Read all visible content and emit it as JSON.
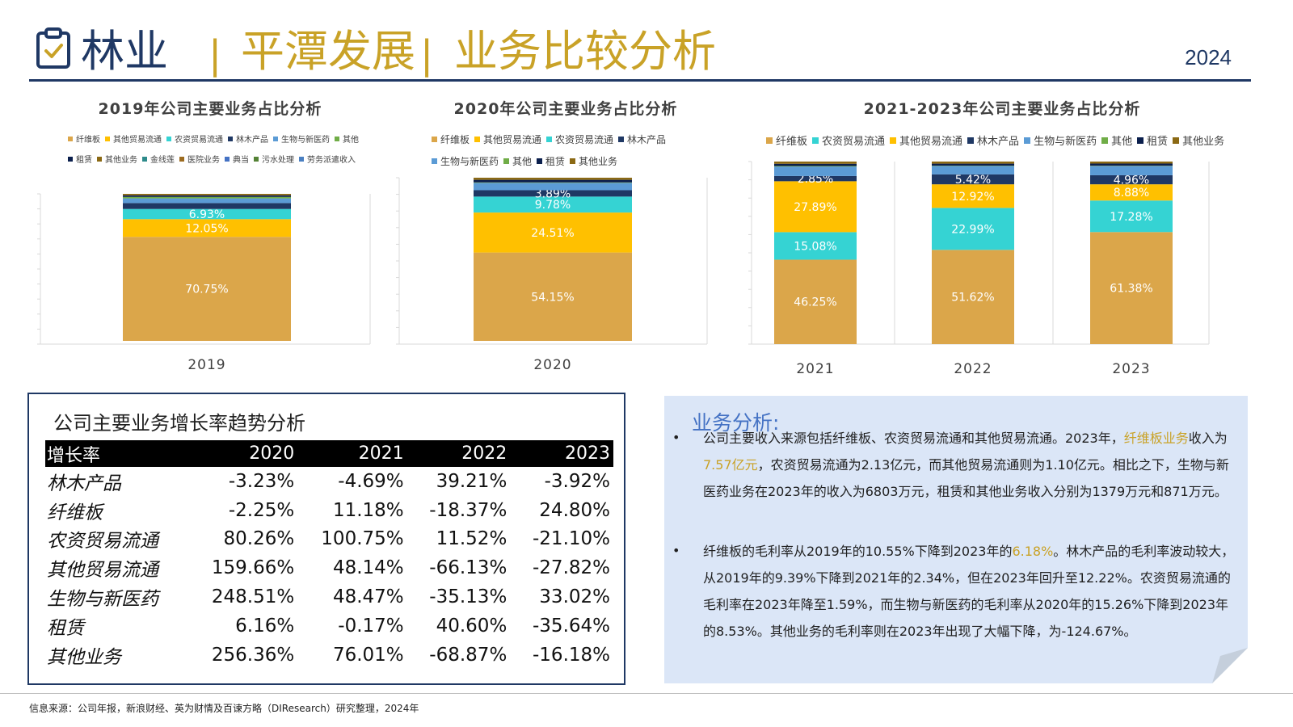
{
  "header": {
    "title_part1": "林业",
    "separator": "|",
    "title_part2": "平潭发展",
    "title_part3": "业务比较分析",
    "year": "2024",
    "colors": {
      "navy": "#1f3864",
      "gold": "#c9a227"
    }
  },
  "chart_data": [
    {
      "type": "stacked-bar",
      "title": "2019年公司主要业务占比分析",
      "categories": [
        "2019"
      ],
      "ylim": [
        0,
        100
      ],
      "legend": [
        {
          "name": "纤维板",
          "color": "#dba64a"
        },
        {
          "name": "其他贸易流通",
          "color": "#ffc000"
        },
        {
          "name": "农资贸易流通",
          "color": "#35d3d3"
        },
        {
          "name": "林木产品",
          "color": "#1f3864"
        },
        {
          "name": "生物与新医药",
          "color": "#5b9bd5"
        },
        {
          "name": "其他",
          "color": "#70ad47"
        },
        {
          "name": "租赁",
          "color": "#0b1f4d"
        },
        {
          "name": "其他业务",
          "color": "#8b6914"
        },
        {
          "name": "金线莲",
          "color": "#2e8b8b"
        },
        {
          "name": "医院业务",
          "color": "#9c6b1f"
        },
        {
          "name": "典当",
          "color": "#4472c4"
        },
        {
          "name": "污水处理",
          "color": "#548235"
        },
        {
          "name": "劳务派遣收入",
          "color": "#4a7fc1"
        }
      ],
      "segments": [
        {
          "name": "纤维板",
          "value": 70.75,
          "color": "#dba64a",
          "label": "70.75%"
        },
        {
          "name": "其他贸易流通",
          "value": 12.05,
          "color": "#ffc000",
          "label": "12.05%"
        },
        {
          "name": "农资贸易流通",
          "value": 6.93,
          "color": "#35d3d3",
          "label": "6.93%"
        },
        {
          "name": "林木产品",
          "value": 4.0,
          "color": "#1f3864",
          "label": ""
        },
        {
          "name": "生物与新医药",
          "value": 3.2,
          "color": "#5b9bd5",
          "label": ""
        },
        {
          "name": "其他",
          "value": 1.0,
          "color": "#70ad47",
          "label": ""
        },
        {
          "name": "租赁",
          "value": 1.07,
          "color": "#0b1f4d",
          "label": ""
        },
        {
          "name": "其他业务",
          "value": 1.0,
          "color": "#8b6914",
          "label": ""
        }
      ]
    },
    {
      "type": "stacked-bar",
      "title": "2020年公司主要业务占比分析",
      "categories": [
        "2020"
      ],
      "ylim": [
        0,
        100
      ],
      "legend": [
        {
          "name": "纤维板",
          "color": "#dba64a"
        },
        {
          "name": "其他贸易流通",
          "color": "#ffc000"
        },
        {
          "name": "农资贸易流通",
          "color": "#35d3d3"
        },
        {
          "name": "林木产品",
          "color": "#1f3864"
        },
        {
          "name": "生物与新医药",
          "color": "#5b9bd5"
        },
        {
          "name": "其他",
          "color": "#70ad47"
        },
        {
          "name": "租赁",
          "color": "#0b1f4d"
        },
        {
          "name": "其他业务",
          "color": "#8b6914"
        }
      ],
      "segments": [
        {
          "name": "纤维板",
          "value": 54.15,
          "color": "#dba64a",
          "label": "54.15%"
        },
        {
          "name": "其他贸易流通",
          "value": 24.51,
          "color": "#ffc000",
          "label": "24.51%"
        },
        {
          "name": "农资贸易流通",
          "value": 9.78,
          "color": "#35d3d3",
          "label": "9.78%"
        },
        {
          "name": "林木产品",
          "value": 3.89,
          "color": "#1f3864",
          "label": "3.89%"
        },
        {
          "name": "生物与新医药",
          "value": 4.5,
          "color": "#5b9bd5",
          "label": ""
        },
        {
          "name": "其他",
          "value": 0.3,
          "color": "#70ad47",
          "label": ""
        },
        {
          "name": "租赁",
          "value": 1.57,
          "color": "#0b1f4d",
          "label": ""
        },
        {
          "name": "其他业务",
          "value": 1.3,
          "color": "#8b6914",
          "label": ""
        }
      ]
    },
    {
      "type": "stacked-bar",
      "title": "2021-2023年公司主要业务占比分析",
      "categories": [
        "2021",
        "2022",
        "2023"
      ],
      "ylim": [
        0,
        100
      ],
      "legend": [
        {
          "name": "纤维板",
          "color": "#dba64a"
        },
        {
          "name": "农资贸易流通",
          "color": "#35d3d3"
        },
        {
          "name": "其他贸易流通",
          "color": "#ffc000"
        },
        {
          "name": "林木产品",
          "color": "#1f3864"
        },
        {
          "name": "生物与新医药",
          "color": "#5b9bd5"
        },
        {
          "name": "其他",
          "color": "#70ad47"
        },
        {
          "name": "租赁",
          "color": "#0b1f4d"
        },
        {
          "name": "其他业务",
          "color": "#8b6914"
        }
      ],
      "series": [
        {
          "name": "纤维板",
          "color": "#dba64a",
          "values": [
            46.25,
            51.62,
            61.38
          ],
          "labels": [
            "46.25%",
            "51.62%",
            "61.38%"
          ]
        },
        {
          "name": "农资贸易流通",
          "color": "#35d3d3",
          "values": [
            15.08,
            22.99,
            17.28
          ],
          "labels": [
            "15.08%",
            "22.99%",
            "17.28%"
          ]
        },
        {
          "name": "其他贸易流通",
          "color": "#ffc000",
          "values": [
            27.89,
            12.92,
            8.88
          ],
          "labels": [
            "27.89%",
            "12.92%",
            "8.88%"
          ]
        },
        {
          "name": "林木产品",
          "color": "#1f3864",
          "values": [
            2.85,
            5.42,
            4.96
          ],
          "labels": [
            "2.85%",
            "5.42%",
            "4.96%"
          ]
        },
        {
          "name": "生物与新医药",
          "color": "#5b9bd5",
          "values": [
            5.2,
            4.6,
            5.0
          ],
          "labels": [
            "",
            "",
            ""
          ]
        },
        {
          "name": "其他",
          "color": "#70ad47",
          "values": [
            0.3,
            0.2,
            0.2
          ],
          "labels": [
            "",
            "",
            ""
          ]
        },
        {
          "name": "租赁",
          "color": "#0b1f4d",
          "values": [
            1.2,
            1.1,
            1.2
          ],
          "labels": [
            "",
            "",
            ""
          ]
        },
        {
          "name": "其他业务",
          "color": "#8b6914",
          "values": [
            1.23,
            1.15,
            1.1
          ],
          "labels": [
            "",
            "",
            ""
          ]
        }
      ]
    }
  ],
  "growth": {
    "title": "公司主要业务增长率趋势分析",
    "headers": [
      "增长率",
      "2020",
      "2021",
      "2022",
      "2023"
    ],
    "rows": [
      [
        "林木产品",
        "-3.23%",
        "-4.69%",
        "39.21%",
        "-3.92%"
      ],
      [
        "纤维板",
        "-2.25%",
        "11.18%",
        "-18.37%",
        "24.80%"
      ],
      [
        "农资贸易流通",
        "80.26%",
        "100.75%",
        "11.52%",
        "-21.10%"
      ],
      [
        "其他贸易流通",
        "159.66%",
        "48.14%",
        "-66.13%",
        "-27.82%"
      ],
      [
        "生物与新医药",
        "248.51%",
        "48.47%",
        "-35.13%",
        "33.02%"
      ],
      [
        "租赁",
        "6.16%",
        "-0.17%",
        "40.60%",
        "-35.64%"
      ],
      [
        "其他业务",
        "256.36%",
        "76.01%",
        "-68.87%",
        "-16.18%"
      ]
    ]
  },
  "analysis": {
    "title": "业务分析:",
    "bullet": "•",
    "p1": {
      "a": "公司主要收入来源包括纤维板、农资贸易流通和其他贸易流通。2023年，",
      "b": "纤维板业务",
      "c": "收入为",
      "d": "7.57亿元",
      "e": "，农资贸易流通为2.13亿元，而其他贸易流通则为1.10亿元。相比之下，生物与新医药业务在2023年的收入为6803万元，租赁和其他业务收入分别为1379万元和871万元。"
    },
    "p2": {
      "a": "纤维板的毛利率从2019年的10.55%下降到2023年的",
      "b": "6.18%",
      "c": "。林木产品的毛利率波动较大，从2019年的9.39%下降到2021年的2.34%，但在2023年回升至12.22%。农资贸易流通的毛利率在2023年降至1.59%，而生物与新医药的毛利率从2020年的15.26%下降到2023年的8.53%。其他业务的毛利率则在2023年出现了大幅下降，为-124.67%。"
    }
  },
  "footer": {
    "source": "信息来源：公司年报，新浪财经、英为财情及百谏方略（DIResearch）研究整理，2024年"
  }
}
